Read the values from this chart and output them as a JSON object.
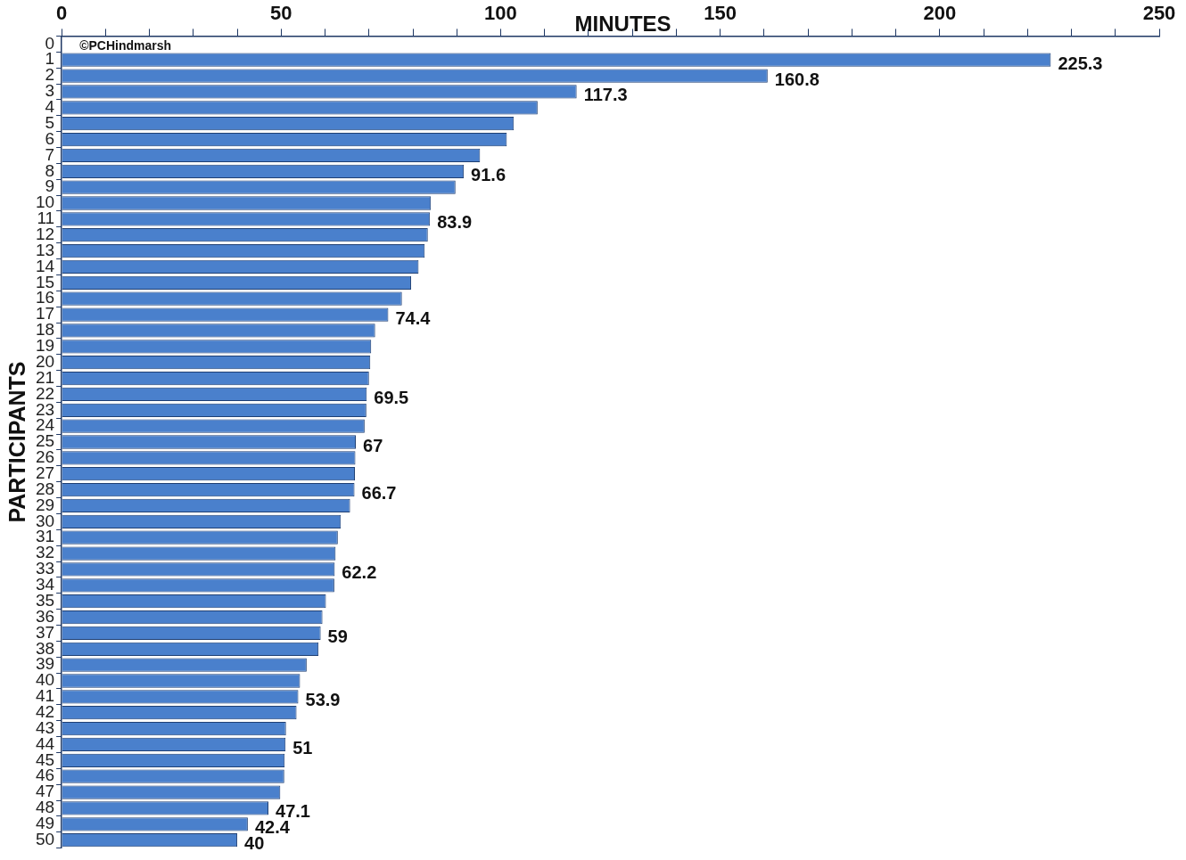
{
  "chart_data": {
    "type": "bar",
    "orientation": "horizontal",
    "xlabel": "MINUTES",
    "ylabel": "PARTICIPANTS",
    "categories": [
      "0",
      "1",
      "2",
      "3",
      "4",
      "5",
      "6",
      "7",
      "8",
      "9",
      "10",
      "11",
      "12",
      "13",
      "14",
      "15",
      "16",
      "17",
      "18",
      "19",
      "20",
      "21",
      "22",
      "23",
      "24",
      "25",
      "26",
      "27",
      "28",
      "29",
      "30",
      "31",
      "32",
      "33",
      "34",
      "35",
      "36",
      "37",
      "38",
      "39",
      "40",
      "41",
      "42",
      "43",
      "44",
      "45",
      "46",
      "47",
      "48",
      "49",
      "50"
    ],
    "values": [
      null,
      225.3,
      160.8,
      117.3,
      108.4,
      103.0,
      101.4,
      95.3,
      91.6,
      89.7,
      84.1,
      83.9,
      83.4,
      82.7,
      81.3,
      79.6,
      77.5,
      74.4,
      71.4,
      70.5,
      70.3,
      70.0,
      69.5,
      69.4,
      69.0,
      67.0,
      66.9,
      66.8,
      66.7,
      65.7,
      63.6,
      62.9,
      62.4,
      62.2,
      62.1,
      60.2,
      59.4,
      59.0,
      58.5,
      55.8,
      54.3,
      53.9,
      53.5,
      51.1,
      51.0,
      50.8,
      50.7,
      49.8,
      47.1,
      42.4,
      40.0
    ],
    "value_labels": [
      null,
      "225.3",
      "160.8",
      "117.3",
      null,
      null,
      null,
      null,
      "91.6",
      null,
      null,
      "83.9",
      null,
      null,
      null,
      null,
      null,
      "74.4",
      null,
      null,
      null,
      null,
      "69.5",
      null,
      null,
      "67",
      null,
      null,
      "66.7",
      null,
      null,
      null,
      null,
      "62.2",
      null,
      null,
      null,
      "59",
      null,
      null,
      null,
      "53.9",
      null,
      null,
      "51",
      null,
      null,
      null,
      "47.1",
      "42.4",
      "40"
    ],
    "color": "#4a80cc",
    "xlim": [
      0,
      250
    ],
    "xticks": [
      0,
      {
        "value": 10,
        "label": null
      },
      {
        "value": 20,
        "label": null
      },
      {
        "value": 30,
        "label": null
      },
      {
        "value": 40,
        "label": null
      },
      50,
      {
        "value": 60,
        "label": null
      },
      {
        "value": 70,
        "label": null
      },
      {
        "value": 80,
        "label": null
      },
      {
        "value": 90,
        "label": null
      },
      100,
      {
        "value": 110,
        "label": null
      },
      {
        "value": 120,
        "label": null
      },
      {
        "value": 130,
        "label": null
      },
      {
        "value": 140,
        "label": null
      },
      150,
      {
        "value": 160,
        "label": null
      },
      {
        "value": 170,
        "label": null
      },
      {
        "value": 180,
        "label": null
      },
      {
        "value": 190,
        "label": null
      },
      200,
      {
        "value": 210,
        "label": null
      },
      {
        "value": 220,
        "label": null
      },
      {
        "value": 230,
        "label": null
      },
      {
        "value": 240,
        "label": null
      },
      250
    ],
    "grid": false,
    "annotations": [
      "©PCHindmarsh"
    ]
  }
}
